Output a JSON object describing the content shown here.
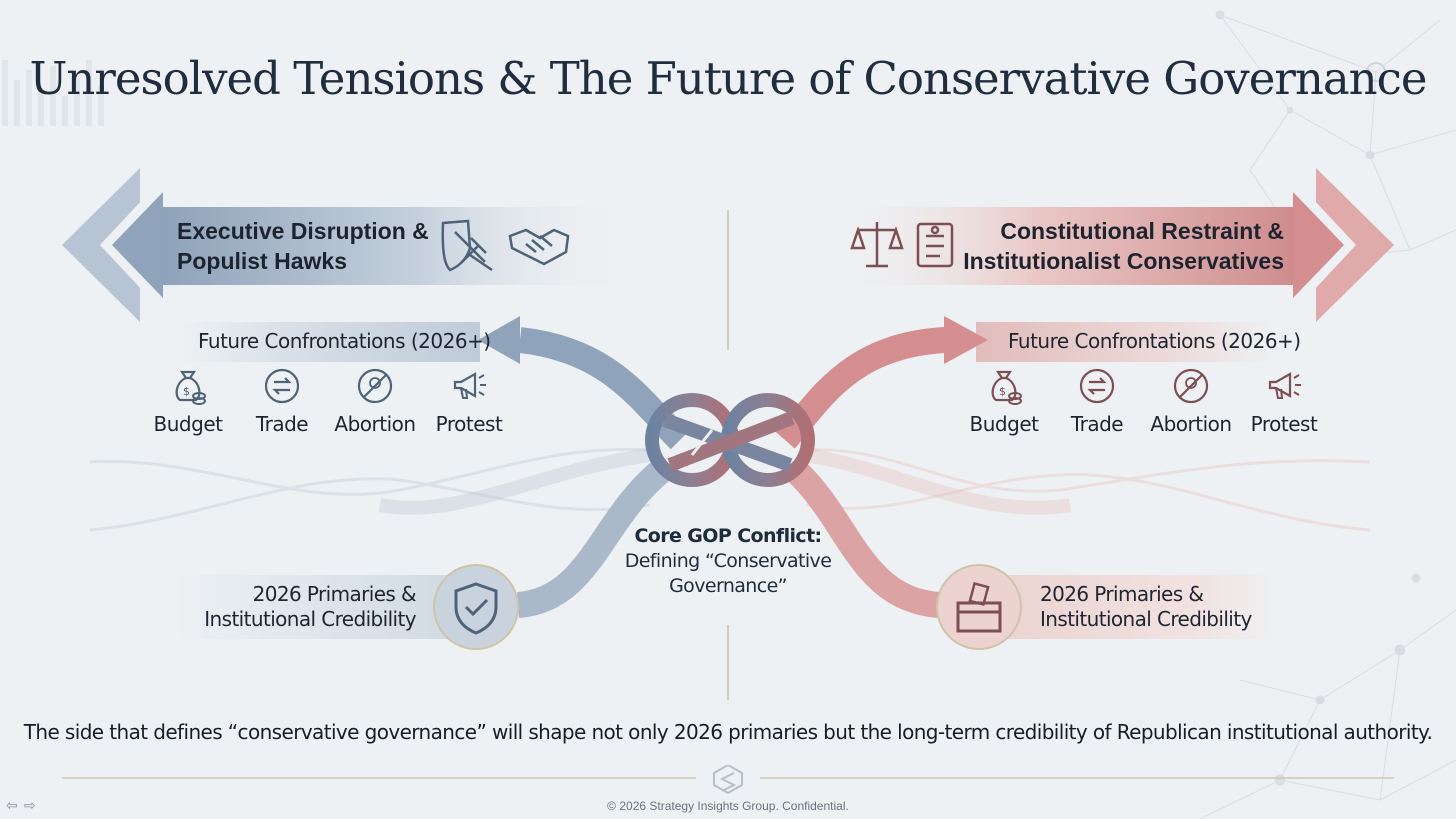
{
  "title": "Unresolved Tensions & The Future of Conservative Governance",
  "left_side": {
    "label_lines": [
      "Executive Disruption &",
      "Populist Hawks"
    ],
    "icons": [
      "gavel-shield-icon",
      "handshake-icon"
    ],
    "future_label": "Future Confrontations (2026+)",
    "topics": [
      {
        "label": "Budget",
        "icon": "money-bag-icon"
      },
      {
        "label": "Trade",
        "icon": "trade-arrows-icon"
      },
      {
        "label": "Abortion",
        "icon": "abortion-prohibited-icon"
      },
      {
        "label": "Protest",
        "icon": "megaphone-icon"
      }
    ],
    "primaries_lines": [
      "2026 Primaries &",
      "Institutional Credibility"
    ],
    "primaries_icon": "shield-check-icon"
  },
  "right_side": {
    "label_lines": [
      "Constitutional Restraint &",
      "Institutionalist Conservatives"
    ],
    "icons": [
      "scales-icon",
      "scroll-document-icon"
    ],
    "future_label": "Future Confrontations (2026+)",
    "topics": [
      {
        "label": "Budget",
        "icon": "money-bag-icon"
      },
      {
        "label": "Trade",
        "icon": "trade-arrows-icon"
      },
      {
        "label": "Abortion",
        "icon": "abortion-prohibited-icon"
      },
      {
        "label": "Protest",
        "icon": "megaphone-icon"
      }
    ],
    "primaries_lines": [
      "2026 Primaries &",
      "Institutional Credibility"
    ],
    "primaries_icon": "ballot-box-icon"
  },
  "core": {
    "heading": "Core GOP Conflict:",
    "lines": [
      "Defining “Conservative",
      "Governance”"
    ]
  },
  "statement": "The side that defines “conservative governance” will shape not only 2026 primaries but the long-term credibility of Republican institutional authority.",
  "copyright": "© 2026 Strategy Insights Group. Confidential.",
  "colors": {
    "blue_accent": "#7f95ad",
    "red_accent": "#c98587",
    "title": "#1f2d3f",
    "background": "#eef1f3"
  }
}
